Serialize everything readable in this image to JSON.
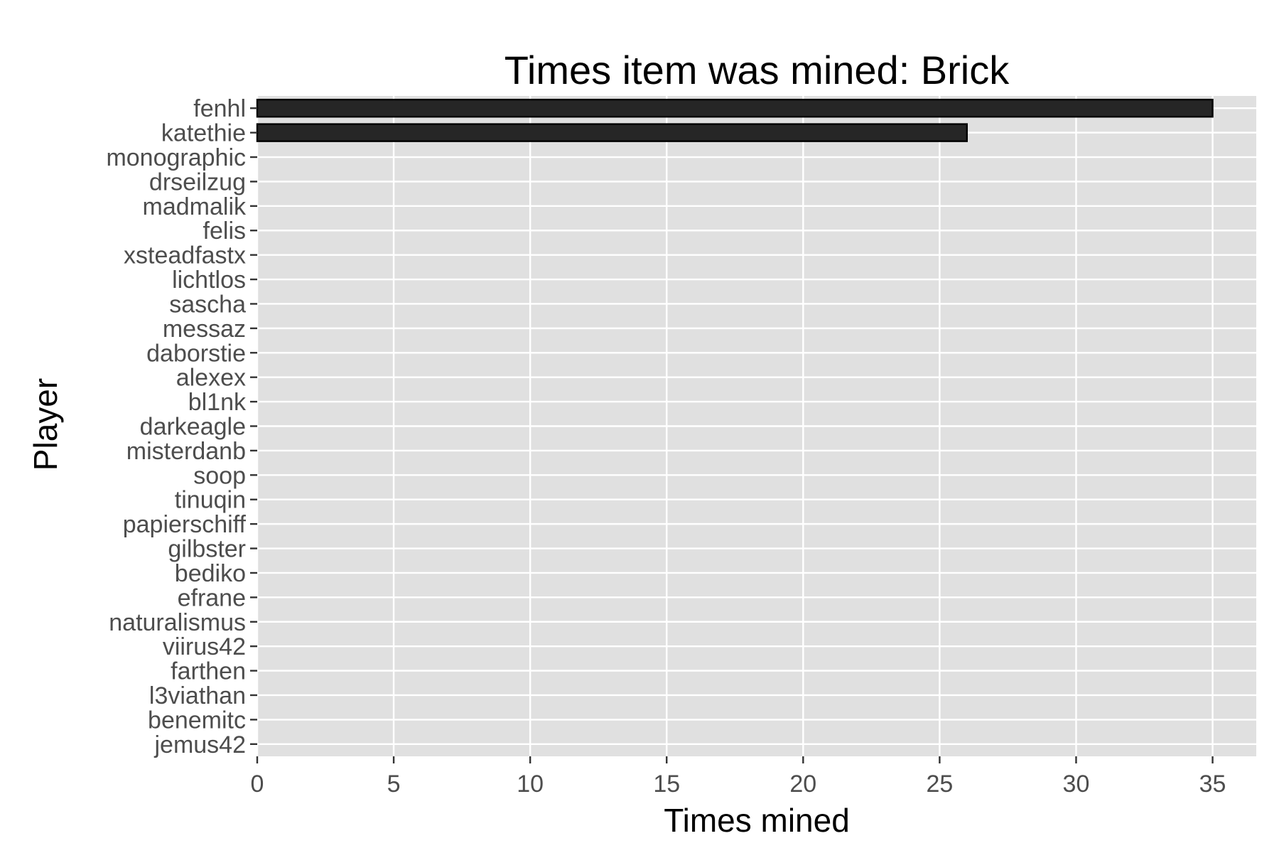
{
  "chart_data": {
    "type": "bar",
    "orientation": "horizontal",
    "title": "Times item was mined: Brick",
    "xlabel": "Times mined",
    "ylabel": "Player",
    "categories": [
      "fenhl",
      "katethie",
      "monographic",
      "drseilzug",
      "madmalik",
      "felis",
      "xsteadfastx",
      "lichtlos",
      "sascha",
      "messaz",
      "daborstie",
      "alexex",
      "bl1nk",
      "darkeagle",
      "misterdanb",
      "soop",
      "tinuqin",
      "papierschiff",
      "gilbster",
      "bediko",
      "efrane",
      "naturalismus",
      "viirus42",
      "farthen",
      "l3viathan",
      "benemitc",
      "jemus42"
    ],
    "values": [
      35,
      26,
      0,
      0,
      0,
      0,
      0,
      0,
      0,
      0,
      0,
      0,
      0,
      0,
      0,
      0,
      0,
      0,
      0,
      0,
      0,
      0,
      0,
      0,
      0,
      0,
      0
    ],
    "xlim": [
      0,
      36.6
    ],
    "xticks": [
      0,
      5,
      10,
      15,
      20,
      25,
      30,
      35
    ],
    "grid": true,
    "legend": "none",
    "colors": {
      "panel_background": "#e0e0e0",
      "grid": "#ffffff",
      "bar_fill": "#262626",
      "bar_stroke": "#000000",
      "tick_text": "#4d4d4d",
      "tick_mark": "#333333"
    }
  }
}
